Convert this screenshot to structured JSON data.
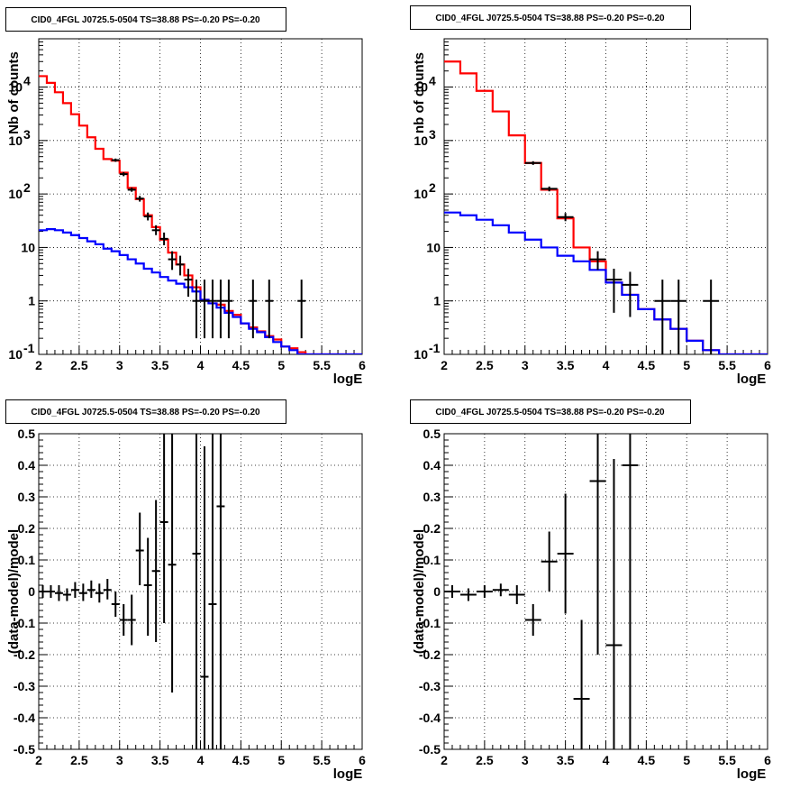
{
  "chart_data": [
    {
      "type": "line",
      "title": "CID0_4FGL J0725.5-0504 TS=38.88 PS=-0.20 PS=-0.20",
      "xlabel": "logE",
      "ylabel": "Nb of counts",
      "xlim": [
        2,
        6
      ],
      "ylim": [
        0.1,
        80000
      ],
      "yscale": "log",
      "grid": true,
      "x_tick_labels": [
        "2",
        "2.5",
        "3",
        "3.5",
        "4",
        "4.5",
        "5",
        "5.5",
        "6"
      ],
      "y_tick_labels": [
        "10^-1",
        "1",
        "10",
        "10^2",
        "10^3",
        "10^4"
      ],
      "bin_edges": [
        2.0,
        2.1,
        2.2,
        2.3,
        2.4,
        2.5,
        2.6,
        2.7,
        2.8,
        2.9,
        3.0,
        3.1,
        3.2,
        3.3,
        3.4,
        3.5,
        3.6,
        3.7,
        3.8,
        3.9,
        4.0,
        4.1,
        4.2,
        4.3,
        4.4,
        4.5,
        4.6,
        4.7,
        4.8,
        4.9,
        5.0,
        5.1,
        5.2,
        5.3,
        5.4,
        5.5,
        5.6,
        5.7,
        5.8,
        5.9,
        6.0
      ],
      "series": [
        {
          "name": "",
          "color": "#ff0000",
          "values": [
            16000,
            12000,
            8000,
            5000,
            3100,
            1900,
            1150,
            700,
            450,
            420,
            250,
            130,
            80,
            40,
            24,
            14,
            8,
            4.8,
            3.0,
            1.8,
            1.05,
            0.9,
            0.85,
            0.65,
            0.55,
            0.38,
            0.32,
            0.27,
            0.22,
            0.19,
            0.14,
            0.13,
            0.11,
            0.1,
            0.1,
            0.1,
            0.1,
            0.1,
            0.1,
            0.1
          ]
        },
        {
          "name": "",
          "color": "#0000ff",
          "values": [
            21,
            22,
            21,
            19,
            17,
            15,
            13,
            11.5,
            9.5,
            8.5,
            7.2,
            6.0,
            5.0,
            4.0,
            3.4,
            2.8,
            2.4,
            2.1,
            1.8,
            1.5,
            1.05,
            0.9,
            0.75,
            0.6,
            0.5,
            0.38,
            0.3,
            0.26,
            0.21,
            0.17,
            0.14,
            0.12,
            0.1,
            0.1,
            0.1,
            0.1,
            0.1,
            0.1,
            0.1,
            0.1
          ]
        }
      ],
      "points": [
        {
          "x": 2.95,
          "y": 430,
          "xerr": 0.05,
          "ylo": 400,
          "yhi": 460
        },
        {
          "x": 3.05,
          "y": 235,
          "xerr": 0.05,
          "ylo": 215,
          "yhi": 255
        },
        {
          "x": 3.15,
          "y": 120,
          "xerr": 0.05,
          "ylo": 110,
          "yhi": 132
        },
        {
          "x": 3.25,
          "y": 82,
          "xerr": 0.05,
          "ylo": 72,
          "yhi": 92
        },
        {
          "x": 3.35,
          "y": 38,
          "xerr": 0.05,
          "ylo": 32,
          "yhi": 45
        },
        {
          "x": 3.45,
          "y": 21,
          "xerr": 0.05,
          "ylo": 17,
          "yhi": 26
        },
        {
          "x": 3.55,
          "y": 14.5,
          "xerr": 0.05,
          "ylo": 11,
          "yhi": 19
        },
        {
          "x": 3.65,
          "y": 6,
          "xerr": 0.05,
          "ylo": 3.8,
          "yhi": 8.5
        },
        {
          "x": 3.75,
          "y": 4.8,
          "xerr": 0.05,
          "ylo": 3,
          "yhi": 7
        },
        {
          "x": 3.85,
          "y": 2.5,
          "xerr": 0.05,
          "ylo": 1.2,
          "yhi": 4
        },
        {
          "x": 3.95,
          "y": 1,
          "xerr": 0.05,
          "ylo": 0.2,
          "yhi": 2.5
        },
        {
          "x": 4.05,
          "y": 1,
          "xerr": 0.05,
          "ylo": 0.2,
          "yhi": 2.5
        },
        {
          "x": 4.15,
          "y": 1,
          "xerr": 0.05,
          "ylo": 0.2,
          "yhi": 2.5
        },
        {
          "x": 4.25,
          "y": 1,
          "xerr": 0.05,
          "ylo": 0.2,
          "yhi": 2.5
        },
        {
          "x": 4.35,
          "y": 1,
          "xerr": 0.05,
          "ylo": 0.2,
          "yhi": 2.5
        },
        {
          "x": 4.65,
          "y": 1,
          "xerr": 0.05,
          "ylo": 0.2,
          "yhi": 2.5
        },
        {
          "x": 4.85,
          "y": 1,
          "xerr": 0.05,
          "ylo": 0.2,
          "yhi": 2.5
        },
        {
          "x": 5.25,
          "y": 1,
          "xerr": 0.05,
          "ylo": 0.2,
          "yhi": 2.5
        }
      ]
    },
    {
      "type": "line",
      "title": "CID0_4FGL J0725.5-0504 TS=38.88 PS=-0.20 PS=-0.20",
      "xlabel": "logE",
      "ylabel": "nb of counts",
      "xlim": [
        2,
        6
      ],
      "ylim": [
        0.1,
        80000
      ],
      "yscale": "log",
      "grid": true,
      "x_tick_labels": [
        "2",
        "2.5",
        "3",
        "3.5",
        "4",
        "4.5",
        "5",
        "5.5",
        "6"
      ],
      "y_tick_labels": [
        "10^-1",
        "1",
        "10",
        "10^2",
        "10^3",
        "10^4"
      ],
      "bin_edges": [
        2.0,
        2.2,
        2.4,
        2.6,
        2.8,
        3.0,
        3.2,
        3.4,
        3.6,
        3.8,
        4.0,
        4.2,
        4.4,
        4.6,
        4.8,
        5.0,
        5.2,
        5.4,
        5.6,
        5.8,
        6.0
      ],
      "series": [
        {
          "name": "",
          "color": "#ff0000",
          "values": [
            30000,
            18000,
            8500,
            3500,
            1250,
            380,
            120,
            35,
            10,
            5.5,
            2.2,
            1.3,
            0.7,
            0.45,
            0.3,
            0.18,
            0.12,
            0.1,
            0.1,
            0.1
          ]
        },
        {
          "name": "",
          "color": "#0000ff",
          "values": [
            45,
            40,
            33,
            26,
            19,
            14,
            10,
            7,
            5.5,
            3.8,
            2.2,
            1.3,
            0.7,
            0.45,
            0.3,
            0.18,
            0.12,
            0.1,
            0.1,
            0.1
          ]
        }
      ],
      "points": [
        {
          "x": 3.1,
          "y": 380,
          "xerr": 0.1,
          "ylo": 350,
          "yhi": 410
        },
        {
          "x": 3.3,
          "y": 125,
          "xerr": 0.1,
          "ylo": 112,
          "yhi": 138
        },
        {
          "x": 3.5,
          "y": 37,
          "xerr": 0.1,
          "ylo": 31,
          "yhi": 44
        },
        {
          "x": 3.9,
          "y": 6,
          "xerr": 0.1,
          "ylo": 3.8,
          "yhi": 8.5
        },
        {
          "x": 4.1,
          "y": 2.5,
          "xerr": 0.1,
          "ylo": 0.6,
          "yhi": 4
        },
        {
          "x": 4.3,
          "y": 2,
          "xerr": 0.1,
          "ylo": 0.5,
          "yhi": 3.5
        },
        {
          "x": 4.7,
          "y": 1,
          "xerr": 0.1,
          "ylo": 0.1,
          "yhi": 2.5
        },
        {
          "x": 4.9,
          "y": 1,
          "xerr": 0.1,
          "ylo": 0.1,
          "yhi": 2.5
        },
        {
          "x": 5.3,
          "y": 1,
          "xerr": 0.1,
          "ylo": 0.1,
          "yhi": 2.5
        }
      ]
    },
    {
      "type": "scatter",
      "title": "CID0_4FGL J0725.5-0504 TS=38.88 PS=-0.20 PS=-0.20",
      "xlabel": "logE",
      "ylabel": "(data-model)/model",
      "xlim": [
        2,
        6
      ],
      "ylim": [
        -0.5,
        0.5
      ],
      "grid": true,
      "x_tick_labels": [
        "2",
        "2.5",
        "3",
        "3.5",
        "4",
        "4.5",
        "5",
        "5.5",
        "6"
      ],
      "y_tick_labels": [
        "-0.5",
        "-0.4",
        "-0.3",
        "-0.2",
        "-0.1",
        "0",
        "0.1",
        "0.2",
        "0.3",
        "0.4",
        "0.5"
      ],
      "points": [
        {
          "x": 2.05,
          "y": 0.0,
          "xerr": 0.05,
          "ylo": -0.02,
          "yhi": 0.02
        },
        {
          "x": 2.15,
          "y": 0.0,
          "xerr": 0.05,
          "ylo": -0.02,
          "yhi": 0.02
        },
        {
          "x": 2.25,
          "y": -0.005,
          "xerr": 0.05,
          "ylo": -0.03,
          "yhi": 0.02
        },
        {
          "x": 2.35,
          "y": -0.01,
          "xerr": 0.05,
          "ylo": -0.03,
          "yhi": 0.01
        },
        {
          "x": 2.45,
          "y": 0.005,
          "xerr": 0.05,
          "ylo": -0.02,
          "yhi": 0.03
        },
        {
          "x": 2.55,
          "y": -0.005,
          "xerr": 0.05,
          "ylo": -0.03,
          "yhi": 0.025
        },
        {
          "x": 2.65,
          "y": 0.005,
          "xerr": 0.05,
          "ylo": -0.02,
          "yhi": 0.035
        },
        {
          "x": 2.75,
          "y": -0.005,
          "xerr": 0.05,
          "ylo": -0.035,
          "yhi": 0.025
        },
        {
          "x": 2.85,
          "y": 0.005,
          "xerr": 0.05,
          "ylo": -0.025,
          "yhi": 0.04
        },
        {
          "x": 2.95,
          "y": -0.04,
          "xerr": 0.05,
          "ylo": -0.08,
          "yhi": 0.0
        },
        {
          "x": 3.05,
          "y": -0.09,
          "xerr": 0.05,
          "ylo": -0.14,
          "yhi": -0.04
        },
        {
          "x": 3.15,
          "y": -0.09,
          "xerr": 0.05,
          "ylo": -0.17,
          "yhi": -0.01
        },
        {
          "x": 3.25,
          "y": 0.13,
          "xerr": 0.05,
          "ylo": 0.02,
          "yhi": 0.25
        },
        {
          "x": 3.35,
          "y": 0.02,
          "xerr": 0.05,
          "ylo": -0.14,
          "yhi": 0.17
        },
        {
          "x": 3.45,
          "y": 0.065,
          "xerr": 0.05,
          "ylo": -0.16,
          "yhi": 0.29
        },
        {
          "x": 3.55,
          "y": 0.22,
          "xerr": 0.05,
          "ylo": -0.1,
          "yhi": 0.5
        },
        {
          "x": 3.65,
          "y": 0.085,
          "xerr": 0.05,
          "ylo": -0.32,
          "yhi": 0.5
        },
        {
          "x": 3.95,
          "y": 0.12,
          "xerr": 0.05,
          "ylo": -0.5,
          "yhi": 0.5
        },
        {
          "x": 4.05,
          "y": -0.27,
          "xerr": 0.05,
          "ylo": -0.5,
          "yhi": 0.46
        },
        {
          "x": 4.15,
          "y": -0.04,
          "xerr": 0.05,
          "ylo": -0.5,
          "yhi": 0.5
        },
        {
          "x": 4.25,
          "y": 0.27,
          "xerr": 0.05,
          "ylo": -0.5,
          "yhi": 0.5
        }
      ]
    },
    {
      "type": "scatter",
      "title": "CID0_4FGL J0725.5-0504 TS=38.88 PS=-0.20 PS=-0.20",
      "xlabel": "logE",
      "ylabel": "(data-model)/model",
      "xlim": [
        2,
        6
      ],
      "ylim": [
        -0.5,
        0.5
      ],
      "grid": true,
      "x_tick_labels": [
        "2",
        "2.5",
        "3",
        "3.5",
        "4",
        "4.5",
        "5",
        "5.5",
        "6"
      ],
      "y_tick_labels": [
        "-0.5",
        "-0.4",
        "-0.3",
        "-0.2",
        "-0.1",
        "0",
        "0.1",
        "0.2",
        "0.3",
        "0.4",
        "0.5"
      ],
      "points": [
        {
          "x": 2.1,
          "y": 0.0,
          "xerr": 0.1,
          "ylo": -0.02,
          "yhi": 0.02
        },
        {
          "x": 2.3,
          "y": -0.01,
          "xerr": 0.1,
          "ylo": -0.03,
          "yhi": 0.01
        },
        {
          "x": 2.5,
          "y": 0.0,
          "xerr": 0.1,
          "ylo": -0.02,
          "yhi": 0.02
        },
        {
          "x": 2.7,
          "y": 0.005,
          "xerr": 0.1,
          "ylo": -0.015,
          "yhi": 0.025
        },
        {
          "x": 2.9,
          "y": -0.01,
          "xerr": 0.1,
          "ylo": -0.04,
          "yhi": 0.02
        },
        {
          "x": 3.1,
          "y": -0.09,
          "xerr": 0.1,
          "ylo": -0.14,
          "yhi": -0.04
        },
        {
          "x": 3.3,
          "y": 0.095,
          "xerr": 0.1,
          "ylo": 0.0,
          "yhi": 0.19
        },
        {
          "x": 3.5,
          "y": 0.12,
          "xerr": 0.1,
          "ylo": -0.07,
          "yhi": 0.31
        },
        {
          "x": 3.7,
          "y": -0.34,
          "xerr": 0.1,
          "ylo": -0.5,
          "yhi": -0.09
        },
        {
          "x": 3.9,
          "y": 0.35,
          "xerr": 0.1,
          "ylo": -0.2,
          "yhi": 0.5
        },
        {
          "x": 4.1,
          "y": -0.17,
          "xerr": 0.1,
          "ylo": -0.5,
          "yhi": 0.42
        },
        {
          "x": 4.3,
          "y": 0.4,
          "xerr": 0.1,
          "ylo": -0.5,
          "yhi": 0.5
        }
      ]
    }
  ]
}
